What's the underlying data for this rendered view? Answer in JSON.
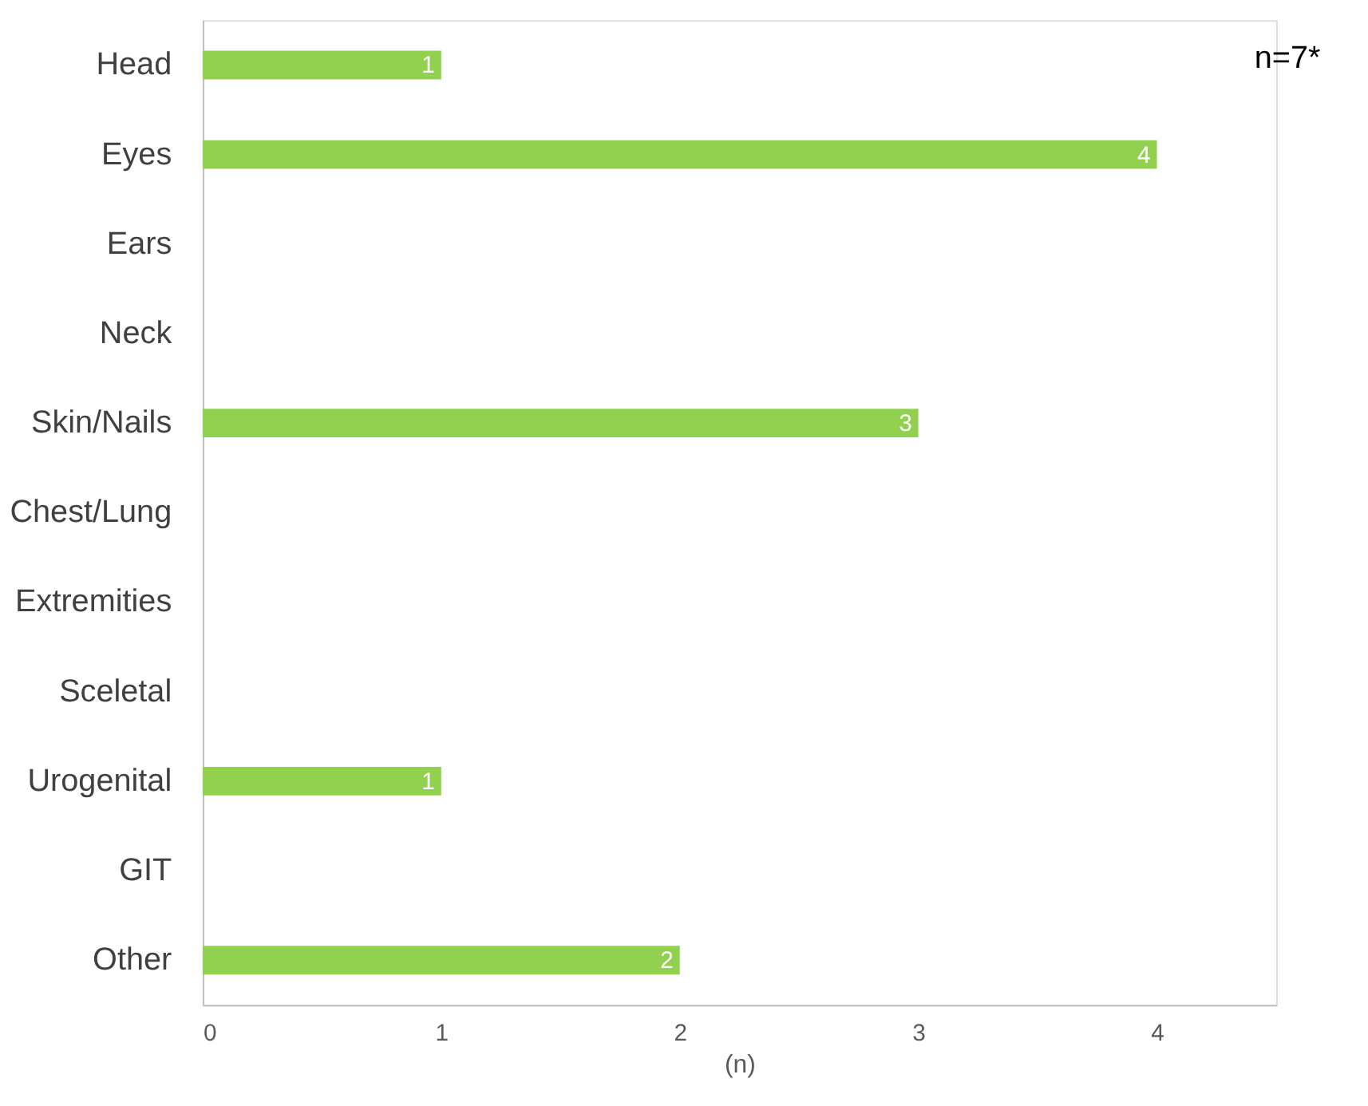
{
  "chart_data": {
    "type": "bar",
    "orientation": "horizontal",
    "xlabel": "(n)",
    "categories": [
      "Head",
      "Eyes",
      "Ears",
      "Neck",
      "Skin/Nails",
      "Chest/Lung",
      "Extremities",
      "Sceletal",
      "Urogenital",
      "GIT",
      "Other"
    ],
    "values": [
      1,
      4,
      null,
      null,
      3,
      null,
      null,
      null,
      1,
      null,
      2
    ],
    "color": "#92d050",
    "xlim": [
      0,
      4.5
    ],
    "xticks": [
      0,
      1,
      2,
      3,
      4
    ],
    "grid": false,
    "data_labels": true,
    "annotations": [
      "n=7*"
    ]
  }
}
